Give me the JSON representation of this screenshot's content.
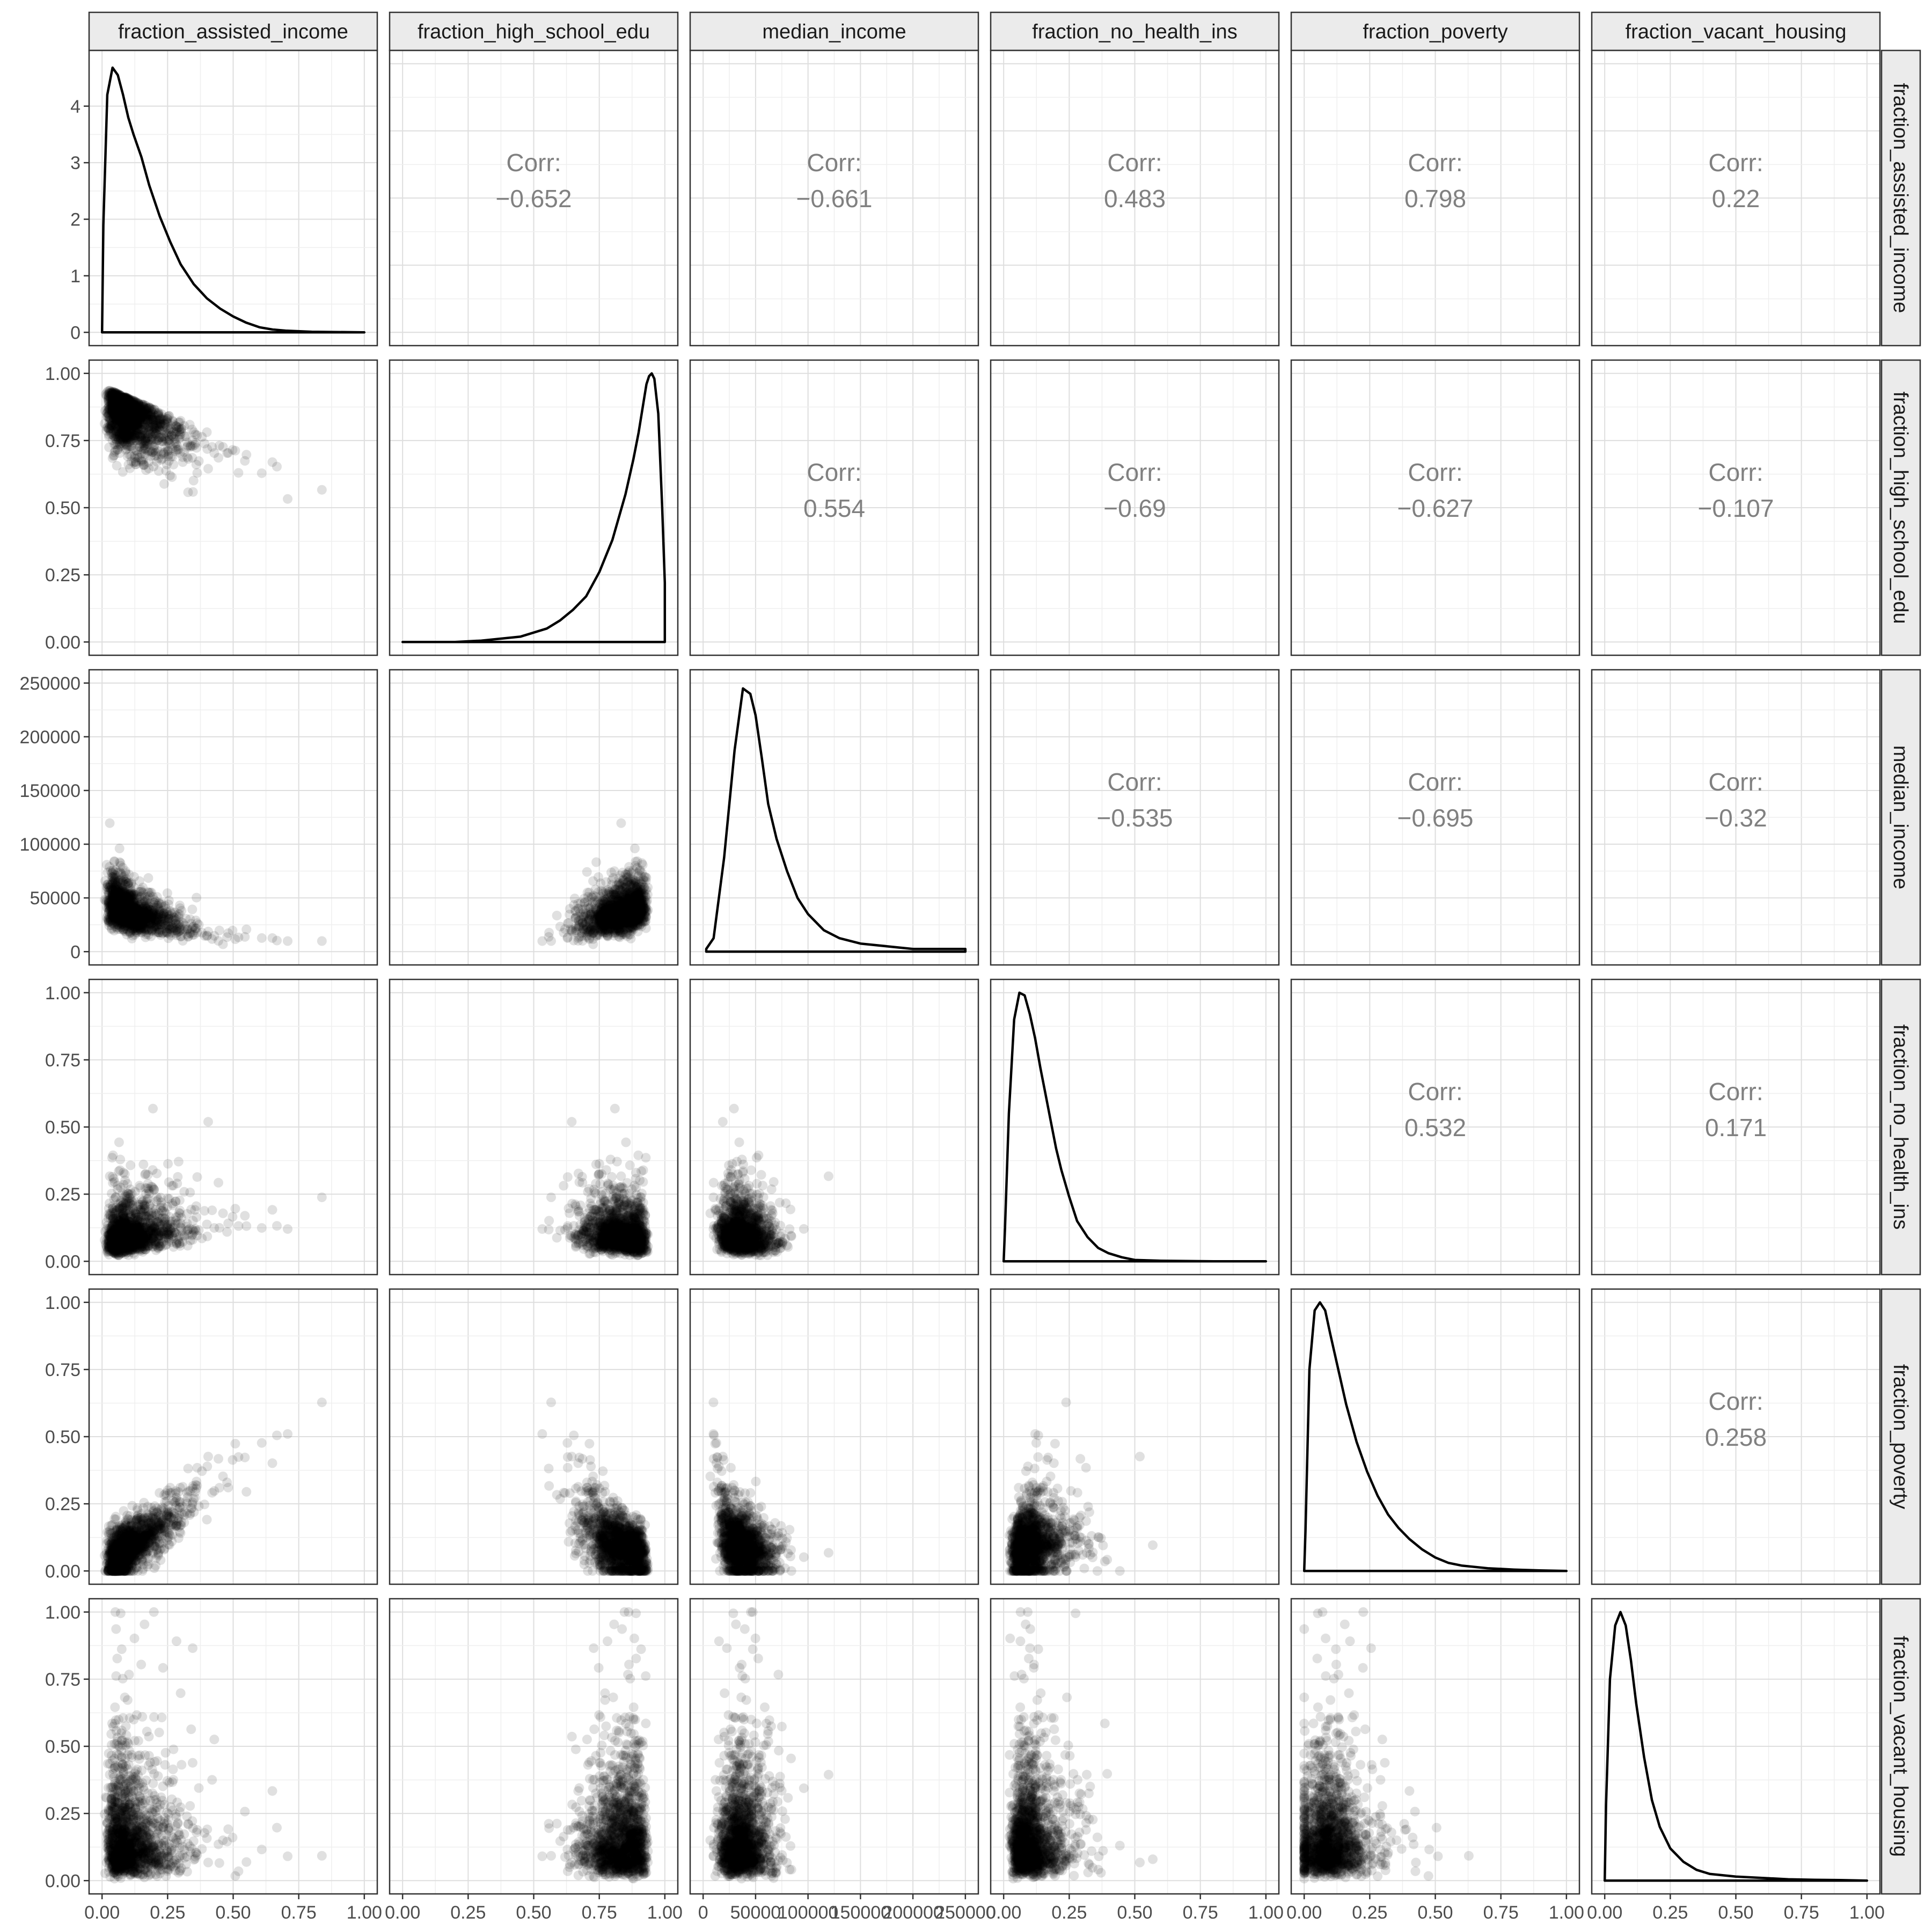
{
  "chart_data": {
    "type": "scatter-matrix",
    "variables": [
      "fraction_assisted_income",
      "fraction_high_school_edu",
      "median_income",
      "fraction_no_health_ins",
      "fraction_poverty",
      "fraction_vacant_housing"
    ],
    "corr_label": "Corr:",
    "correlations": [
      {
        "row": 0,
        "col": 1,
        "value": "−0.652"
      },
      {
        "row": 0,
        "col": 2,
        "value": "−0.661"
      },
      {
        "row": 0,
        "col": 3,
        "value": "0.483"
      },
      {
        "row": 0,
        "col": 4,
        "value": "0.798"
      },
      {
        "row": 0,
        "col": 5,
        "value": "0.22"
      },
      {
        "row": 1,
        "col": 2,
        "value": "0.554"
      },
      {
        "row": 1,
        "col": 3,
        "value": "−0.69"
      },
      {
        "row": 1,
        "col": 4,
        "value": "−0.627"
      },
      {
        "row": 1,
        "col": 5,
        "value": "−0.107"
      },
      {
        "row": 2,
        "col": 3,
        "value": "−0.535"
      },
      {
        "row": 2,
        "col": 4,
        "value": "−0.695"
      },
      {
        "row": 2,
        "col": 5,
        "value": "−0.32"
      },
      {
        "row": 3,
        "col": 4,
        "value": "0.532"
      },
      {
        "row": 3,
        "col": 5,
        "value": "0.171"
      },
      {
        "row": 4,
        "col": 5,
        "value": "0.258"
      }
    ],
    "axes": {
      "fraction_assisted_income": {
        "range": [
          0,
          1
        ],
        "ticks": [
          0,
          0.25,
          0.5,
          0.75,
          1
        ],
        "labels": [
          "0.00",
          "0.25",
          "0.50",
          "0.75",
          "1.00"
        ]
      },
      "fraction_high_school_edu": {
        "range": [
          0,
          1
        ],
        "ticks": [
          0,
          0.25,
          0.5,
          0.75,
          1
        ],
        "labels": [
          "0.00",
          "0.25",
          "0.50",
          "0.75",
          "1.00"
        ]
      },
      "median_income": {
        "range": [
          0,
          250000
        ],
        "ticks": [
          0,
          50000,
          100000,
          150000,
          200000,
          250000
        ],
        "labels": [
          "0",
          "50000",
          "100000",
          "150000",
          "200000",
          "250000"
        ]
      },
      "fraction_no_health_ins": {
        "range": [
          0,
          1
        ],
        "ticks": [
          0,
          0.25,
          0.5,
          0.75,
          1
        ],
        "labels": [
          "0.00",
          "0.25",
          "0.50",
          "0.75",
          "1.00"
        ]
      },
      "fraction_poverty": {
        "range": [
          0,
          1
        ],
        "ticks": [
          0,
          0.25,
          0.5,
          0.75,
          1
        ],
        "labels": [
          "0.00",
          "0.25",
          "0.50",
          "0.75",
          "1.00"
        ]
      },
      "fraction_vacant_housing": {
        "range": [
          0,
          1
        ],
        "ticks": [
          0,
          0.25,
          0.5,
          0.75,
          1
        ],
        "labels": [
          "0.00",
          "0.25",
          "0.50",
          "0.75",
          "1.00"
        ]
      }
    },
    "density_y_axis": {
      "ticks": [
        0,
        1,
        2,
        3,
        4
      ],
      "labels": [
        "0",
        "1",
        "2",
        "3",
        "4"
      ],
      "range": [
        0,
        4.75
      ]
    },
    "densities": [
      {
        "variable": "fraction_assisted_income",
        "x": [
          0,
          0.005,
          0.02,
          0.04,
          0.06,
          0.08,
          0.1,
          0.12,
          0.15,
          0.18,
          0.22,
          0.26,
          0.3,
          0.35,
          0.4,
          0.45,
          0.5,
          0.55,
          0.6,
          0.65,
          0.7,
          0.8,
          1.0
        ],
        "y": [
          0,
          1.9,
          4.2,
          4.68,
          4.55,
          4.2,
          3.8,
          3.5,
          3.1,
          2.6,
          2.05,
          1.6,
          1.2,
          0.85,
          0.6,
          0.42,
          0.28,
          0.17,
          0.09,
          0.05,
          0.03,
          0.01,
          0
        ]
      },
      {
        "variable": "fraction_high_school_edu",
        "x": [
          0,
          0.2,
          0.3,
          0.4,
          0.45,
          0.5,
          0.55,
          0.6,
          0.65,
          0.7,
          0.75,
          0.8,
          0.85,
          0.88,
          0.9,
          0.92,
          0.93,
          0.94,
          0.95,
          0.96,
          0.975,
          0.99,
          1.0
        ],
        "y": [
          0,
          0,
          0.005,
          0.015,
          0.02,
          0.035,
          0.05,
          0.08,
          0.12,
          0.17,
          0.26,
          0.38,
          0.55,
          0.68,
          0.78,
          0.9,
          0.96,
          0.99,
          1.0,
          0.98,
          0.85,
          0.5,
          0.22
        ]
      },
      {
        "variable": "median_income",
        "x": [
          3000,
          10000,
          20000,
          30000,
          38000,
          45000,
          50000,
          56000,
          62000,
          70000,
          80000,
          90000,
          100000,
          115000,
          130000,
          150000,
          175000,
          200000,
          250000
        ],
        "y": [
          0.01,
          0.05,
          0.35,
          0.75,
          0.98,
          0.96,
          0.88,
          0.72,
          0.55,
          0.42,
          0.3,
          0.2,
          0.14,
          0.08,
          0.05,
          0.03,
          0.02,
          0.01,
          0.01
        ]
      },
      {
        "variable": "fraction_no_health_ins",
        "x": [
          0,
          0.005,
          0.02,
          0.04,
          0.06,
          0.08,
          0.1,
          0.12,
          0.14,
          0.16,
          0.18,
          0.2,
          0.22,
          0.25,
          0.28,
          0.32,
          0.36,
          0.4,
          0.45,
          0.5,
          0.6,
          0.8,
          1.0
        ],
        "y": [
          0,
          0.12,
          0.55,
          0.9,
          1.0,
          0.99,
          0.92,
          0.83,
          0.72,
          0.62,
          0.52,
          0.42,
          0.34,
          0.24,
          0.15,
          0.09,
          0.05,
          0.03,
          0.015,
          0.005,
          0.002,
          0,
          0
        ]
      },
      {
        "variable": "fraction_poverty",
        "x": [
          0,
          0.005,
          0.02,
          0.04,
          0.06,
          0.08,
          0.1,
          0.13,
          0.16,
          0.2,
          0.24,
          0.28,
          0.32,
          0.36,
          0.4,
          0.45,
          0.5,
          0.55,
          0.6,
          0.7,
          0.8,
          0.9,
          1.0
        ],
        "y": [
          0,
          0.15,
          0.75,
          0.97,
          1.0,
          0.97,
          0.88,
          0.75,
          0.62,
          0.48,
          0.37,
          0.28,
          0.21,
          0.16,
          0.12,
          0.08,
          0.05,
          0.03,
          0.02,
          0.01,
          0.005,
          0.002,
          0
        ]
      },
      {
        "variable": "fraction_vacant_housing",
        "x": [
          0,
          0.005,
          0.02,
          0.04,
          0.06,
          0.08,
          0.1,
          0.12,
          0.15,
          0.18,
          0.21,
          0.25,
          0.3,
          0.35,
          0.4,
          0.5,
          0.6,
          0.7,
          0.8,
          0.9,
          1.0
        ],
        "y": [
          0,
          0.28,
          0.75,
          0.95,
          1.0,
          0.95,
          0.82,
          0.66,
          0.46,
          0.3,
          0.2,
          0.12,
          0.07,
          0.04,
          0.025,
          0.015,
          0.01,
          0.005,
          0.003,
          0.002,
          0
        ]
      }
    ],
    "grid": true,
    "point_color": "#000000",
    "point_alpha": 0.1,
    "strip_fill": "#ebebeb"
  }
}
